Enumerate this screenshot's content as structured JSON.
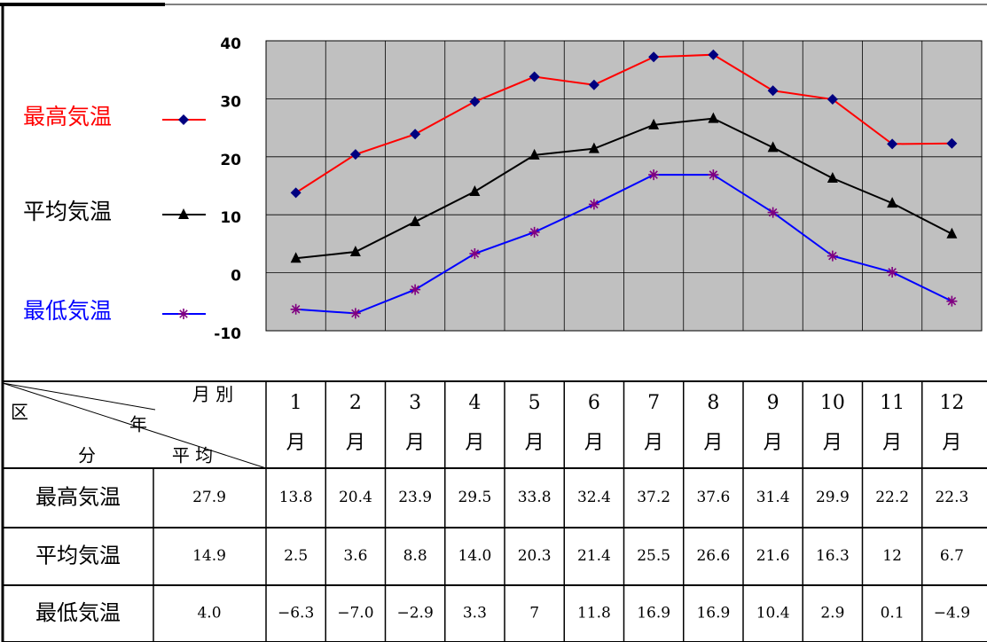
{
  "chart_data": {
    "type": "line",
    "categories": [
      "1",
      "2",
      "3",
      "4",
      "5",
      "6",
      "7",
      "8",
      "9",
      "10",
      "11",
      "12"
    ],
    "month_unit": "月",
    "ylim": [
      -10,
      40
    ],
    "yticks": [
      -10,
      0,
      10,
      20,
      30,
      40
    ],
    "grid": true,
    "plot_background": "#c0c0c0",
    "legend": "left",
    "series": [
      {
        "name": "最高気温",
        "color": "#ff0000",
        "marker": "diamond",
        "marker_color": "#000080",
        "values": [
          13.8,
          20.4,
          23.9,
          29.5,
          33.8,
          32.4,
          37.2,
          37.6,
          31.4,
          29.9,
          22.2,
          22.3
        ],
        "value_labels": [
          "13.8",
          "20.4",
          "23.9",
          "29.5",
          "33.8",
          "32.4",
          "37.2",
          "37.6",
          "31.4",
          "29.9",
          "22.2",
          "22.3"
        ],
        "annual_average": "27.9"
      },
      {
        "name": "平均気温",
        "color": "#000000",
        "marker": "triangle",
        "marker_color": "#000000",
        "values": [
          2.5,
          3.6,
          8.8,
          14.0,
          20.3,
          21.4,
          25.5,
          26.6,
          21.6,
          16.3,
          12,
          6.7
        ],
        "value_labels": [
          "2.5",
          "3.6",
          "8.8",
          "14.0",
          "20.3",
          "21.4",
          "25.5",
          "26.6",
          "21.6",
          "16.3",
          "12",
          "6.7"
        ],
        "annual_average": "14.9"
      },
      {
        "name": "最低気温",
        "color": "#0000ff",
        "marker": "asterisk",
        "marker_color": "#800080",
        "values": [
          -6.3,
          -7.0,
          -2.9,
          3.3,
          7,
          11.8,
          16.9,
          16.9,
          10.4,
          2.9,
          0.1,
          -4.9
        ],
        "value_labels": [
          "−6.3",
          "−7.0",
          "−2.9",
          "3.3",
          "7",
          "11.8",
          "16.9",
          "16.9",
          "10.4",
          "2.9",
          "0.1",
          "−4.9"
        ],
        "annual_average": "4.0"
      }
    ]
  },
  "table": {
    "corner": {
      "month": "月 別",
      "year": "年",
      "section_top": "区",
      "average": "平 均",
      "section_bottom": "分"
    }
  }
}
